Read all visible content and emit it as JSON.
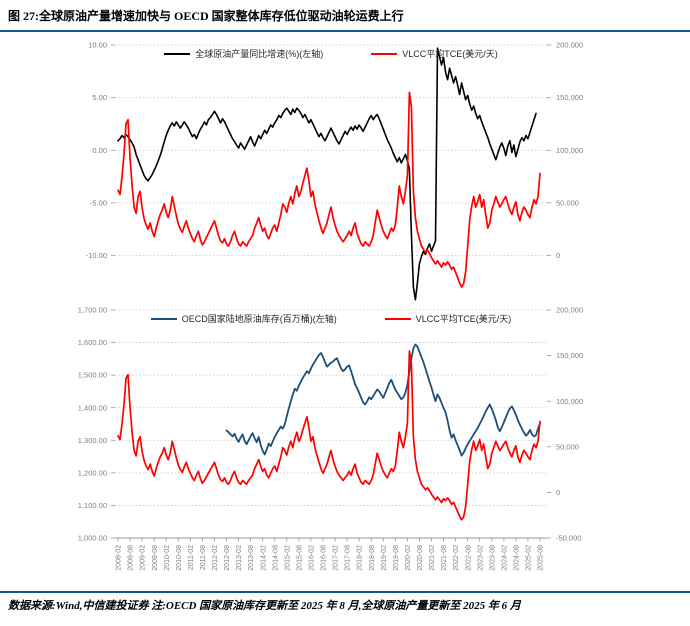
{
  "title": "图 27:全球原油产量增速加快与 OECD 国家整体库存低位驱动油轮运费上行",
  "footer": "数据来源:Wind,中信建投证券 注:OECD 国家原油库存更新至 2025 年 8 月,全球原油产量更新至 2025 年 6 月",
  "colors": {
    "accent_rule": "#17548c",
    "production_line": "#000000",
    "vlcc_line": "#ff0000",
    "inventory_line": "#1f4e79",
    "gridline": "#c6c6c6",
    "axis_text": "#808080"
  },
  "x_labels": [
    "2008-02",
    "2008-08",
    "2009-02",
    "2009-08",
    "2010-02",
    "2010-08",
    "2011-02",
    "2011-08",
    "2012-02",
    "2012-08",
    "2013-02",
    "2013-08",
    "2014-02",
    "2014-08",
    "2015-02",
    "2015-08",
    "2016-02",
    "2016-08",
    "2017-02",
    "2017-08",
    "2018-02",
    "2018-08",
    "2019-02",
    "2019-08",
    "2020-02",
    "2020-08",
    "2021-02",
    "2021-08",
    "2022-02",
    "2022-08",
    "2023-02",
    "2023-08",
    "2024-02",
    "2024-08",
    "2025-02",
    "2025-08"
  ],
  "chart_data": [
    {
      "type": "line",
      "x_start": "2008-02",
      "x_step_months": 1,
      "left_ticks": [
        "10.00",
        "5.00",
        "0.00",
        "-5.00",
        "-10.00"
      ],
      "left_range": [
        10,
        -10
      ],
      "right_ticks": [
        "200,000",
        "150,000",
        "100,000",
        "50,000",
        "0"
      ],
      "right_range": [
        200000,
        0
      ],
      "grid": true,
      "legend_position": "top-center",
      "series": [
        {
          "name": "全球原油产量同比增速(%)(左轴)",
          "axis": "left",
          "color": "#000000",
          "width": 1.6,
          "start_month": 0,
          "values": [
            0.9,
            1.1,
            1.4,
            1.2,
            1.5,
            1.3,
            1.0,
            0.7,
            0.3,
            -0.4,
            -0.9,
            -1.4,
            -1.9,
            -2.4,
            -2.7,
            -2.9,
            -2.6,
            -2.3,
            -1.9,
            -1.5,
            -1.0,
            -0.5,
            0.1,
            0.8,
            1.4,
            1.9,
            2.3,
            2.6,
            2.3,
            2.7,
            2.4,
            2.1,
            2.4,
            2.7,
            2.4,
            2.1,
            1.7,
            1.3,
            1.5,
            1.1,
            1.6,
            2.0,
            2.3,
            2.7,
            2.4,
            2.9,
            3.1,
            3.4,
            3.7,
            3.4,
            3.0,
            2.6,
            3.0,
            2.7,
            2.3,
            1.9,
            1.5,
            1.1,
            0.8,
            0.5,
            0.2,
            0.7,
            0.4,
            0.1,
            0.5,
            0.9,
            1.3,
            0.8,
            0.4,
            0.9,
            1.4,
            1.1,
            1.5,
            1.9,
            1.6,
            2.0,
            2.4,
            2.2,
            2.6,
            2.9,
            3.3,
            3.1,
            3.5,
            3.8,
            4.0,
            3.7,
            3.4,
            3.9,
            3.6,
            4.0,
            3.8,
            3.5,
            3.1,
            3.4,
            3.0,
            2.6,
            2.9,
            2.5,
            2.1,
            1.7,
            1.3,
            1.6,
            1.2,
            0.9,
            1.3,
            1.7,
            2.1,
            1.7,
            1.3,
            0.9,
            0.6,
            1.0,
            1.4,
            1.8,
            1.5,
            1.9,
            2.2,
            1.9,
            2.3,
            2.0,
            2.4,
            2.1,
            1.8,
            2.2,
            2.6,
            3.0,
            3.3,
            2.9,
            3.2,
            3.4,
            3.0,
            2.5,
            2.0,
            1.5,
            1.0,
            0.6,
            0.2,
            -0.3,
            -0.7,
            -1.1,
            -0.7,
            -1.2,
            -0.8,
            -0.4,
            -1.0,
            -1.8,
            -8.0,
            -13.0,
            -14.2,
            -12.6,
            -10.8,
            -10.1,
            -9.6,
            -9.9,
            -9.3,
            -8.9,
            -9.6,
            -9.1,
            -8.6,
            9.7,
            8.9,
            8.1,
            8.8,
            7.4,
            6.7,
            7.8,
            7.1,
            6.4,
            7.0,
            6.2,
            5.3,
            6.4,
            5.6,
            4.8,
            5.2,
            4.4,
            3.8,
            4.2,
            3.5,
            3.0,
            3.3,
            2.7,
            2.2,
            1.7,
            1.2,
            0.6,
            0.1,
            -0.4,
            -0.9,
            -0.3,
            0.3,
            0.7,
            0.2,
            -0.5,
            0.4,
            0.9,
            -0.2,
            0.5,
            -0.6,
            0.1,
            0.8,
            1.2,
            0.9,
            1.4,
            1.1,
            1.7,
            2.3,
            2.9,
            3.5
          ]
        },
        {
          "name": "VLCC平均TCE(美元/天)",
          "axis": "right",
          "color": "#ff0000",
          "width": 1.7,
          "start_month": 0,
          "values": [
            62000,
            58000,
            75000,
            96000,
            125000,
            129000,
            92000,
            66000,
            46000,
            40000,
            56000,
            61000,
            45000,
            35000,
            29000,
            25000,
            31000,
            23000,
            18000,
            26000,
            33000,
            39000,
            43000,
            49000,
            41000,
            36000,
            43000,
            56000,
            47000,
            38000,
            30000,
            25000,
            22000,
            28000,
            33000,
            26000,
            21000,
            16000,
            13000,
            19000,
            23000,
            15000,
            10000,
            13000,
            17000,
            21000,
            25000,
            29000,
            33000,
            26000,
            19000,
            14000,
            12000,
            16000,
            11000,
            9000,
            13000,
            19000,
            23000,
            16000,
            11000,
            9000,
            13000,
            11000,
            9000,
            13000,
            16000,
            19000,
            26000,
            31000,
            36000,
            29000,
            23000,
            26000,
            19000,
            16000,
            21000,
            26000,
            29000,
            23000,
            31000,
            39000,
            49000,
            46000,
            41000,
            50000,
            56000,
            49000,
            59000,
            66000,
            56000,
            61000,
            69000,
            76000,
            83000,
            71000,
            56000,
            61000,
            49000,
            41000,
            33000,
            26000,
            21000,
            26000,
            31000,
            39000,
            46000,
            36000,
            29000,
            23000,
            19000,
            16000,
            13000,
            16000,
            19000,
            23000,
            19000,
            26000,
            31000,
            21000,
            16000,
            11000,
            9000,
            13000,
            11000,
            9000,
            13000,
            19000,
            31000,
            43000,
            36000,
            29000,
            23000,
            19000,
            16000,
            21000,
            26000,
            23000,
            29000,
            46000,
            66000,
            56000,
            49000,
            61000,
            76000,
            155000,
            141000,
            61000,
            36000,
            23000,
            16000,
            9000,
            6000,
            3000,
            5000,
            2000,
            -2000,
            -5000,
            -8000,
            -5000,
            -8000,
            -11000,
            -7000,
            -9000,
            -6000,
            -9000,
            -13000,
            -11000,
            -16000,
            -21000,
            -26000,
            -30000,
            -27000,
            -16000,
            9000,
            34000,
            47000,
            56000,
            46000,
            51000,
            58000,
            46000,
            53000,
            39000,
            26000,
            31000,
            43000,
            49000,
            56000,
            51000,
            46000,
            49000,
            53000,
            56000,
            49000,
            43000,
            39000,
            46000,
            51000,
            39000,
            33000,
            41000,
            46000,
            43000,
            39000,
            36000,
            46000,
            53000,
            49000,
            56000,
            78000
          ]
        }
      ]
    },
    {
      "type": "line",
      "x_start": "2008-02",
      "x_step_months": 1,
      "left_ticks": [
        "1,700.00",
        "1,600.00",
        "1,500.00",
        "1,400.00",
        "1,300.00",
        "1,200.00",
        "1,100.00",
        "1,000.00"
      ],
      "left_range": [
        1700,
        1000
      ],
      "right_ticks": [
        "200,000",
        "150,000",
        "100,000",
        "50,000",
        "0",
        "-50,000"
      ],
      "right_range": [
        200000,
        -50000
      ],
      "grid": true,
      "legend_position": "top-center",
      "series": [
        {
          "name": "OECD国家陆地原油库存(百万桶)(左轴)",
          "axis": "left",
          "color": "#1f4e79",
          "width": 1.8,
          "start_month": 54,
          "values": [
            1330,
            1325,
            1318,
            1312,
            1320,
            1305,
            1295,
            1308,
            1318,
            1298,
            1288,
            1300,
            1312,
            1322,
            1306,
            1294,
            1310,
            1285,
            1268,
            1256,
            1272,
            1290,
            1282,
            1296,
            1310,
            1322,
            1332,
            1342,
            1336,
            1350,
            1374,
            1398,
            1420,
            1440,
            1458,
            1452,
            1468,
            1480,
            1492,
            1502,
            1512,
            1506,
            1520,
            1532,
            1542,
            1552,
            1562,
            1568,
            1556,
            1540,
            1526,
            1532,
            1538,
            1542,
            1548,
            1552,
            1536,
            1520,
            1512,
            1518,
            1526,
            1530,
            1512,
            1492,
            1472,
            1460,
            1446,
            1430,
            1416,
            1410,
            1420,
            1432,
            1426,
            1436,
            1446,
            1456,
            1450,
            1440,
            1430,
            1446,
            1460,
            1476,
            1486,
            1470,
            1456,
            1446,
            1436,
            1426,
            1432,
            1446,
            1470,
            1512,
            1552,
            1582,
            1594,
            1588,
            1572,
            1556,
            1540,
            1520,
            1500,
            1480,
            1462,
            1440,
            1420,
            1441,
            1430,
            1415,
            1400,
            1385,
            1360,
            1330,
            1308,
            1318,
            1300,
            1285,
            1270,
            1253,
            1262,
            1275,
            1288,
            1298,
            1308,
            1318,
            1328,
            1338,
            1350,
            1362,
            1375,
            1388,
            1400,
            1410,
            1396,
            1380,
            1362,
            1340,
            1328,
            1340,
            1355,
            1370,
            1385,
            1398,
            1404,
            1392,
            1378,
            1362,
            1348,
            1336,
            1324,
            1314,
            1320,
            1332,
            1318,
            1312,
            1316,
            1336,
            1352
          ]
        },
        {
          "name": "VLCC平均TCE(美元/天)",
          "axis": "right",
          "color": "#ff0000",
          "width": 1.7,
          "start_month": 0,
          "values": [
            62000,
            58000,
            75000,
            96000,
            125000,
            129000,
            92000,
            66000,
            46000,
            40000,
            56000,
            61000,
            45000,
            35000,
            29000,
            25000,
            31000,
            23000,
            18000,
            26000,
            33000,
            39000,
            43000,
            49000,
            41000,
            36000,
            43000,
            56000,
            47000,
            38000,
            30000,
            25000,
            22000,
            28000,
            33000,
            26000,
            21000,
            16000,
            13000,
            19000,
            23000,
            15000,
            10000,
            13000,
            17000,
            21000,
            25000,
            29000,
            33000,
            26000,
            19000,
            14000,
            12000,
            16000,
            11000,
            9000,
            13000,
            19000,
            23000,
            16000,
            11000,
            9000,
            13000,
            11000,
            9000,
            13000,
            16000,
            19000,
            26000,
            31000,
            36000,
            29000,
            23000,
            26000,
            19000,
            16000,
            21000,
            26000,
            29000,
            23000,
            31000,
            39000,
            49000,
            46000,
            41000,
            50000,
            56000,
            49000,
            59000,
            66000,
            56000,
            61000,
            69000,
            76000,
            83000,
            71000,
            56000,
            61000,
            49000,
            41000,
            33000,
            26000,
            21000,
            26000,
            31000,
            39000,
            46000,
            36000,
            29000,
            23000,
            19000,
            16000,
            13000,
            16000,
            19000,
            23000,
            19000,
            26000,
            31000,
            21000,
            16000,
            11000,
            9000,
            13000,
            11000,
            9000,
            13000,
            19000,
            31000,
            43000,
            36000,
            29000,
            23000,
            19000,
            16000,
            21000,
            26000,
            23000,
            29000,
            46000,
            66000,
            56000,
            49000,
            61000,
            76000,
            155000,
            141000,
            61000,
            36000,
            23000,
            16000,
            9000,
            6000,
            3000,
            5000,
            2000,
            -2000,
            -5000,
            -8000,
            -5000,
            -8000,
            -11000,
            -7000,
            -9000,
            -6000,
            -9000,
            -13000,
            -11000,
            -16000,
            -21000,
            -26000,
            -30000,
            -27000,
            -16000,
            9000,
            34000,
            47000,
            56000,
            46000,
            51000,
            58000,
            46000,
            53000,
            39000,
            26000,
            31000,
            43000,
            49000,
            56000,
            51000,
            46000,
            49000,
            53000,
            56000,
            49000,
            43000,
            39000,
            46000,
            51000,
            39000,
            33000,
            41000,
            46000,
            43000,
            39000,
            36000,
            46000,
            53000,
            49000,
            56000,
            78000
          ]
        }
      ]
    }
  ]
}
